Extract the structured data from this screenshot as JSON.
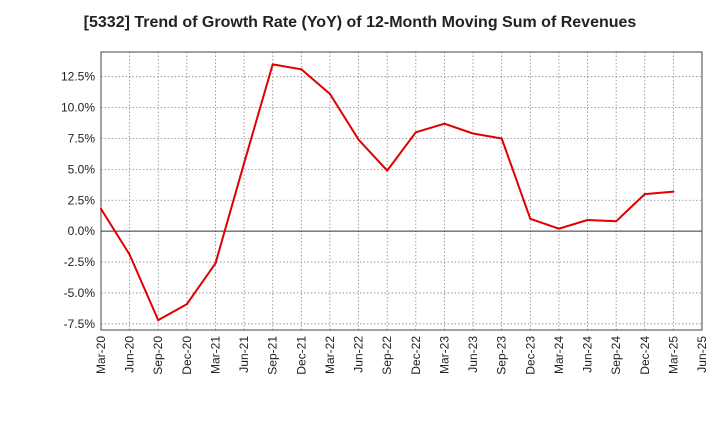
{
  "chart_data": {
    "type": "line",
    "title": "[5332]  Trend of Growth Rate (YoY) of 12-Month Moving Sum of Revenues",
    "xlabel": "",
    "ylabel": "",
    "x_ticks": [
      "Mar-20",
      "Jun-20",
      "Sep-20",
      "Dec-20",
      "Mar-21",
      "Jun-21",
      "Sep-21",
      "Dec-21",
      "Mar-22",
      "Jun-22",
      "Sep-22",
      "Dec-22",
      "Mar-23",
      "Jun-23",
      "Sep-23",
      "Dec-23",
      "Mar-24",
      "Jun-24",
      "Sep-24",
      "Dec-24",
      "Mar-25",
      "Jun-25"
    ],
    "y_ticks": [
      "12.5%",
      "10.0%",
      "7.5%",
      "5.0%",
      "2.5%",
      "0.0%",
      "-2.5%",
      "-5.0%",
      "-7.5%"
    ],
    "y_tick_values": [
      12.5,
      10.0,
      7.5,
      5.0,
      2.5,
      0.0,
      -2.5,
      -5.0,
      -7.5
    ],
    "ylim": [
      -8.0,
      14.5
    ],
    "grid": true,
    "line_color": "#e00000",
    "series": [
      {
        "x": [
          "Mar-20",
          "Jun-20",
          "Sep-20",
          "Dec-20",
          "Mar-21",
          "Jun-21",
          "Sep-21",
          "Dec-21",
          "Mar-22",
          "Jun-22",
          "Sep-22",
          "Dec-22",
          "Mar-23",
          "Jun-23",
          "Sep-23",
          "Dec-23",
          "Mar-24",
          "Jun-24",
          "Sep-24",
          "Dec-24",
          "Mar-25"
        ],
        "values": [
          1.8,
          -1.9,
          -7.2,
          -5.9,
          -2.6,
          5.5,
          13.5,
          13.1,
          11.1,
          7.4,
          4.9,
          8.0,
          8.7,
          7.9,
          7.5,
          1.0,
          0.2,
          0.9,
          0.8,
          3.0,
          3.2
        ]
      }
    ]
  }
}
